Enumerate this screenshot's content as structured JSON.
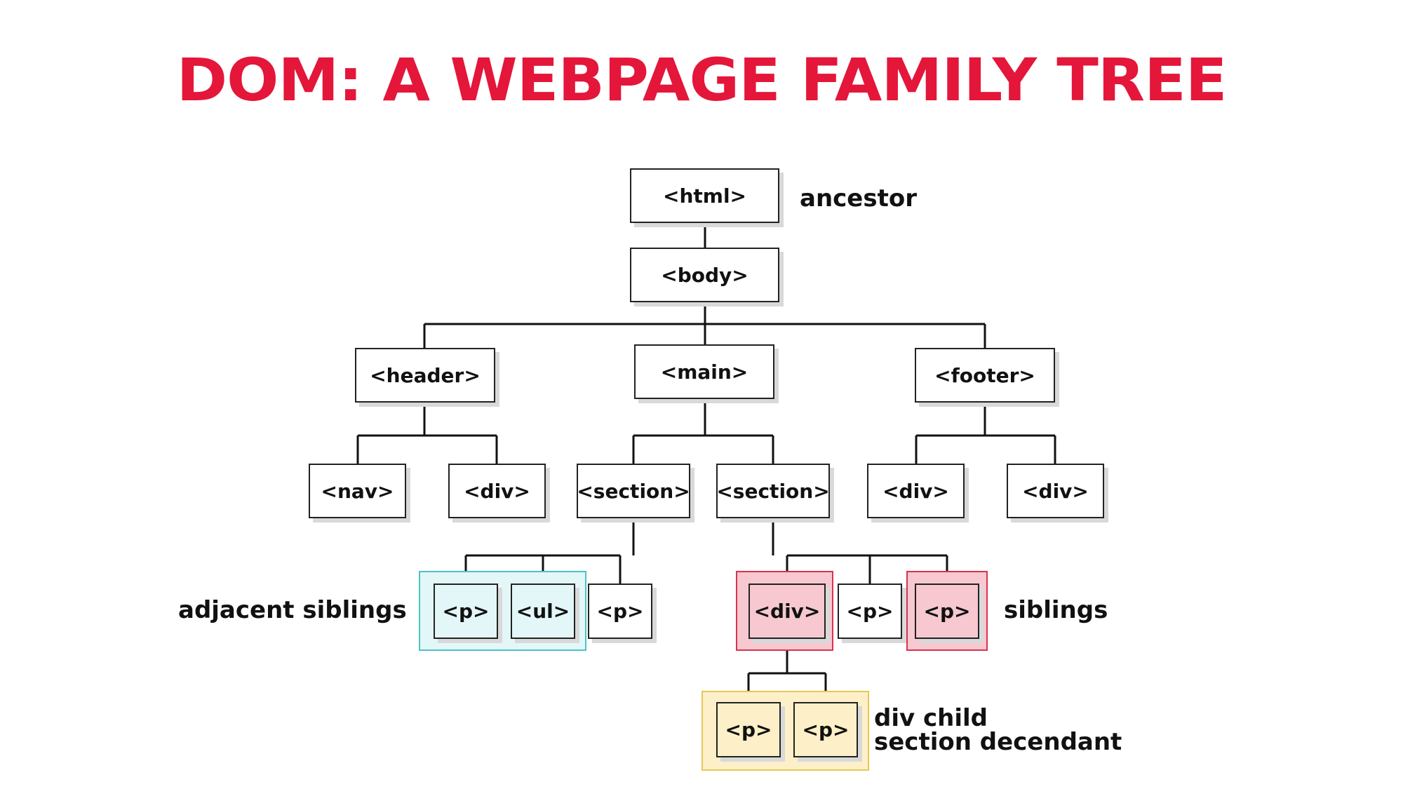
{
  "title": "DOM: A WEBPAGE FAMILY TREE",
  "nodes": {
    "html": "<html>",
    "body": "<body>",
    "header": "<header>",
    "main": "<main>",
    "footer": "<footer>",
    "nav": "<nav>",
    "header_div": "<div>",
    "section1": "<section>",
    "section2": "<section>",
    "footer_div1": "<div>",
    "footer_div2": "<div>",
    "s1_p1": "<p>",
    "s1_ul": "<ul>",
    "s1_p2": "<p>",
    "s2_div": "<div>",
    "s2_p1": "<p>",
    "s2_p2": "<p>",
    "div_p1": "<p>",
    "div_p2": "<p>"
  },
  "labels": {
    "ancestor": "ancestor",
    "adjacent_siblings": "adjacent siblings",
    "siblings": "siblings",
    "div_child": "div child",
    "section_descendant": "section decendant"
  },
  "colors": {
    "title": "#e4163a",
    "adjacent_siblings_fill": "#e3f7f8",
    "adjacent_siblings_border": "#4dc1c9",
    "siblings_fill": "#f7c8d0",
    "siblings_border": "#d8334f",
    "descendant_fill": "#fdf0c8",
    "descendant_border": "#e8c855"
  }
}
